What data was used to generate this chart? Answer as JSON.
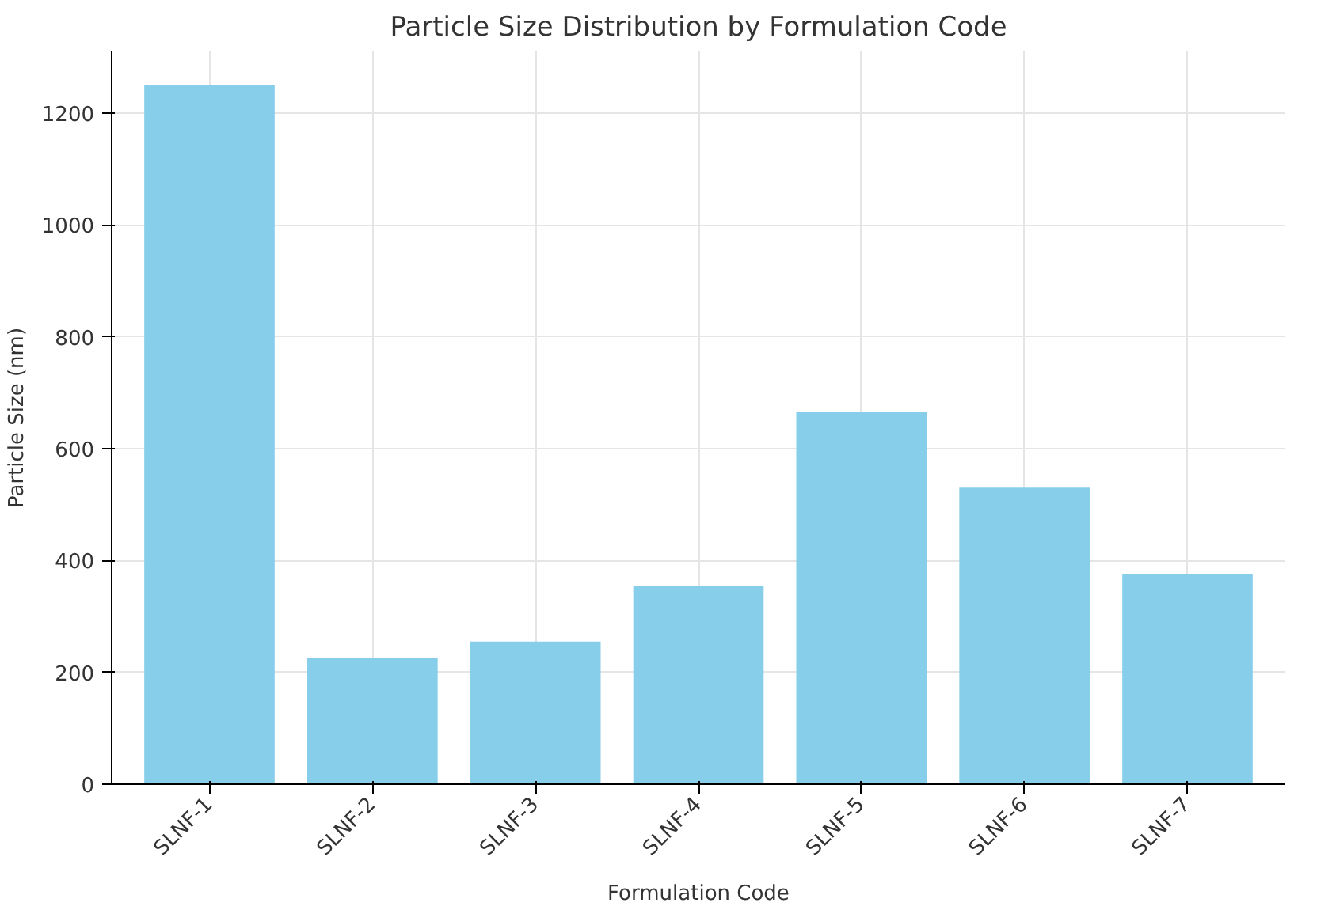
{
  "chart_data": {
    "type": "bar",
    "title": "Particle Size Distribution by Formulation Code",
    "xlabel": "Formulation Code",
    "ylabel": "Particle Size (nm)",
    "categories": [
      "SLNF-1",
      "SLNF-2",
      "SLNF-3",
      "SLNF-4",
      "SLNF-5",
      "SLNF-6",
      "SLNF-7"
    ],
    "values": [
      1250,
      225,
      255,
      355,
      665,
      530,
      375
    ],
    "color": "#87ceeb",
    "ylim": [
      0,
      1310
    ],
    "yticks": [
      0,
      200,
      400,
      600,
      800,
      1000,
      1200
    ],
    "grid": true
  }
}
